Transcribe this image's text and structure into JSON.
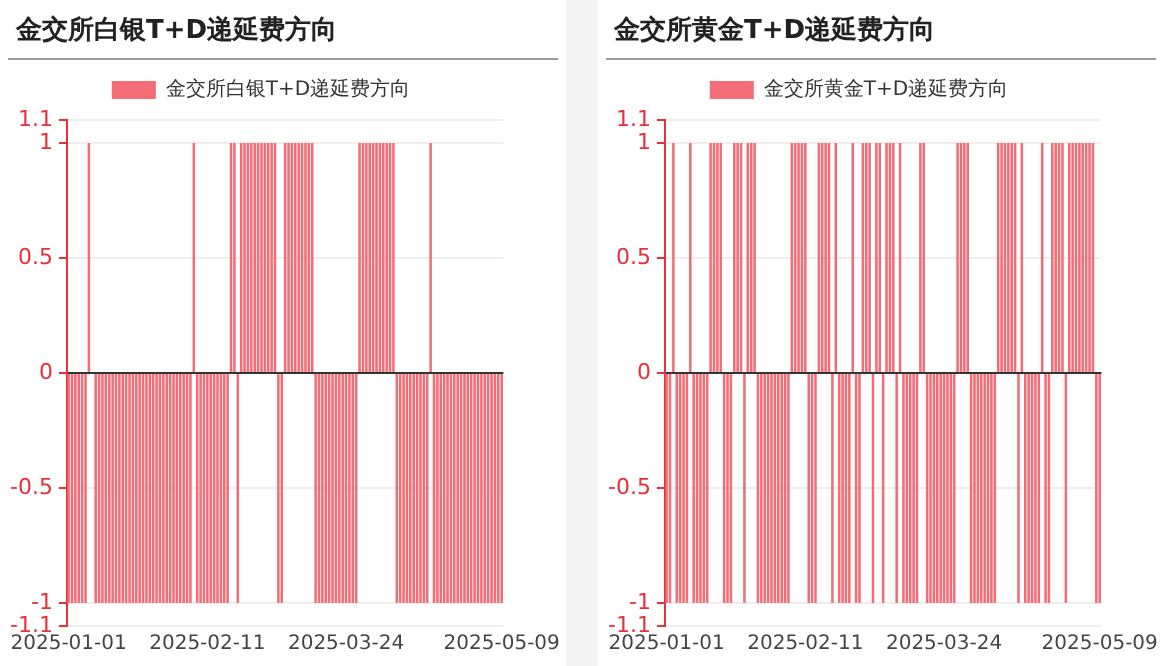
{
  "chart_data": [
    {
      "type": "bar",
      "title": "金交所白银T+D递延费方向",
      "categories": [
        "2025-01-01",
        null,
        null,
        null,
        null,
        null,
        null,
        null,
        null,
        null,
        null,
        null,
        null,
        null,
        null,
        null,
        null,
        null,
        null,
        null,
        null,
        null,
        null,
        null,
        null,
        null,
        null,
        null,
        null,
        null,
        null,
        null,
        null,
        null,
        null,
        null,
        null,
        null,
        null,
        null,
        null,
        "2025-02-11",
        null,
        null,
        null,
        null,
        null,
        null,
        null,
        null,
        null,
        null,
        null,
        null,
        null,
        null,
        null,
        null,
        null,
        null,
        null,
        null,
        null,
        null,
        null,
        null,
        null,
        null,
        null,
        null,
        null,
        null,
        null,
        null,
        null,
        null,
        null,
        null,
        null,
        null,
        null,
        null,
        "2025-03-24",
        null,
        null,
        null,
        null,
        null,
        null,
        null,
        null,
        null,
        null,
        null,
        null,
        null,
        null,
        null,
        null,
        null,
        null,
        null,
        null,
        null,
        null,
        null,
        null,
        null,
        null,
        null,
        null,
        null,
        null,
        null,
        null,
        null,
        null,
        null,
        null,
        null,
        null,
        null,
        null,
        null,
        null,
        null,
        null,
        null,
        "2025-05-09"
      ],
      "series": [
        {
          "name": "金交所白银T+D递延费方向",
          "color": "#f26d75",
          "values": [
            -1,
            -1,
            -1,
            -1,
            -1,
            -1,
            1,
            null,
            -1,
            -1,
            -1,
            -1,
            -1,
            -1,
            -1,
            -1,
            -1,
            -1,
            -1,
            -1,
            -1,
            -1,
            -1,
            -1,
            -1,
            -1,
            -1,
            -1,
            -1,
            -1,
            -1,
            -1,
            -1,
            -1,
            -1,
            -1,
            -1,
            1,
            -1,
            -1,
            -1,
            -1,
            -1,
            -1,
            -1,
            -1,
            -1,
            -1,
            1,
            1,
            -1,
            1,
            1,
            1,
            1,
            1,
            1,
            1,
            1,
            1,
            1,
            1,
            -1,
            -1,
            1,
            1,
            1,
            1,
            1,
            1,
            1,
            1,
            1,
            -1,
            -1,
            -1,
            -1,
            -1,
            -1,
            -1,
            -1,
            -1,
            -1,
            -1,
            -1,
            -1,
            1,
            1,
            1,
            1,
            1,
            1,
            1,
            1,
            1,
            1,
            1,
            -1,
            -1,
            -1,
            -1,
            -1,
            -1,
            -1,
            -1,
            -1,
            -1,
            1,
            -1,
            -1,
            -1,
            -1,
            -1,
            -1,
            -1,
            -1,
            -1,
            -1,
            -1,
            -1,
            -1,
            -1,
            -1,
            -1,
            -1,
            -1,
            -1,
            -1,
            -1
          ]
        }
      ],
      "ylim": [
        -1.1,
        1.1
      ],
      "yticks": [
        -1.1,
        -1,
        -0.5,
        0,
        0.5,
        1,
        1.1
      ],
      "grid": "y",
      "legend": "top"
    },
    {
      "type": "bar",
      "title": "金交所黄金T+D递延费方向",
      "categories": [
        "2025-01-01",
        null,
        null,
        null,
        null,
        null,
        null,
        null,
        null,
        null,
        null,
        null,
        null,
        null,
        null,
        null,
        null,
        null,
        null,
        null,
        null,
        null,
        null,
        null,
        null,
        null,
        null,
        null,
        null,
        null,
        null,
        null,
        null,
        null,
        null,
        null,
        null,
        null,
        null,
        null,
        null,
        "2025-02-11",
        null,
        null,
        null,
        null,
        null,
        null,
        null,
        null,
        null,
        null,
        null,
        null,
        null,
        null,
        null,
        null,
        null,
        null,
        null,
        null,
        null,
        null,
        null,
        null,
        null,
        null,
        null,
        null,
        null,
        null,
        null,
        null,
        null,
        null,
        null,
        null,
        null,
        null,
        null,
        null,
        "2025-03-24",
        null,
        null,
        null,
        null,
        null,
        null,
        null,
        null,
        null,
        null,
        null,
        null,
        null,
        null,
        null,
        null,
        null,
        null,
        null,
        null,
        null,
        null,
        null,
        null,
        null,
        null,
        null,
        null,
        null,
        null,
        null,
        null,
        null,
        null,
        null,
        null,
        null,
        null,
        null,
        null,
        null,
        null,
        null,
        null,
        null,
        "2025-05-09"
      ],
      "series": [
        {
          "name": "金交所黄金T+D递延费方向",
          "color": "#f26d75",
          "values": [
            -1,
            -1,
            1,
            -1,
            -1,
            -1,
            -1,
            1,
            -1,
            -1,
            -1,
            -1,
            -1,
            1,
            1,
            1,
            1,
            -1,
            -1,
            -1,
            1,
            1,
            1,
            -1,
            1,
            1,
            1,
            -1,
            -1,
            -1,
            -1,
            -1,
            -1,
            -1,
            -1,
            -1,
            -1,
            1,
            1,
            1,
            1,
            1,
            -1,
            -1,
            -1,
            1,
            1,
            1,
            1,
            -1,
            1,
            -1,
            -1,
            -1,
            -1,
            1,
            -1,
            -1,
            1,
            1,
            1,
            -1,
            1,
            1,
            -1,
            1,
            1,
            1,
            -1,
            1,
            -1,
            -1,
            -1,
            -1,
            -1,
            1,
            1,
            -1,
            -1,
            -1,
            -1,
            -1,
            -1,
            -1,
            -1,
            -1,
            1,
            1,
            1,
            1,
            -1,
            -1,
            -1,
            -1,
            -1,
            -1,
            -1,
            -1,
            1,
            1,
            1,
            1,
            1,
            1,
            -1,
            1,
            -1,
            -1,
            -1,
            -1,
            -1,
            1,
            -1,
            -1,
            1,
            1,
            1,
            1,
            -1,
            1,
            1,
            1,
            1,
            1,
            1,
            1,
            1,
            -1,
            -1
          ]
        }
      ],
      "ylim": [
        -1.1,
        1.1
      ],
      "yticks": [
        -1.1,
        -1,
        -0.5,
        0,
        0.5,
        1,
        1.1
      ],
      "grid": "y",
      "legend": "top"
    }
  ]
}
